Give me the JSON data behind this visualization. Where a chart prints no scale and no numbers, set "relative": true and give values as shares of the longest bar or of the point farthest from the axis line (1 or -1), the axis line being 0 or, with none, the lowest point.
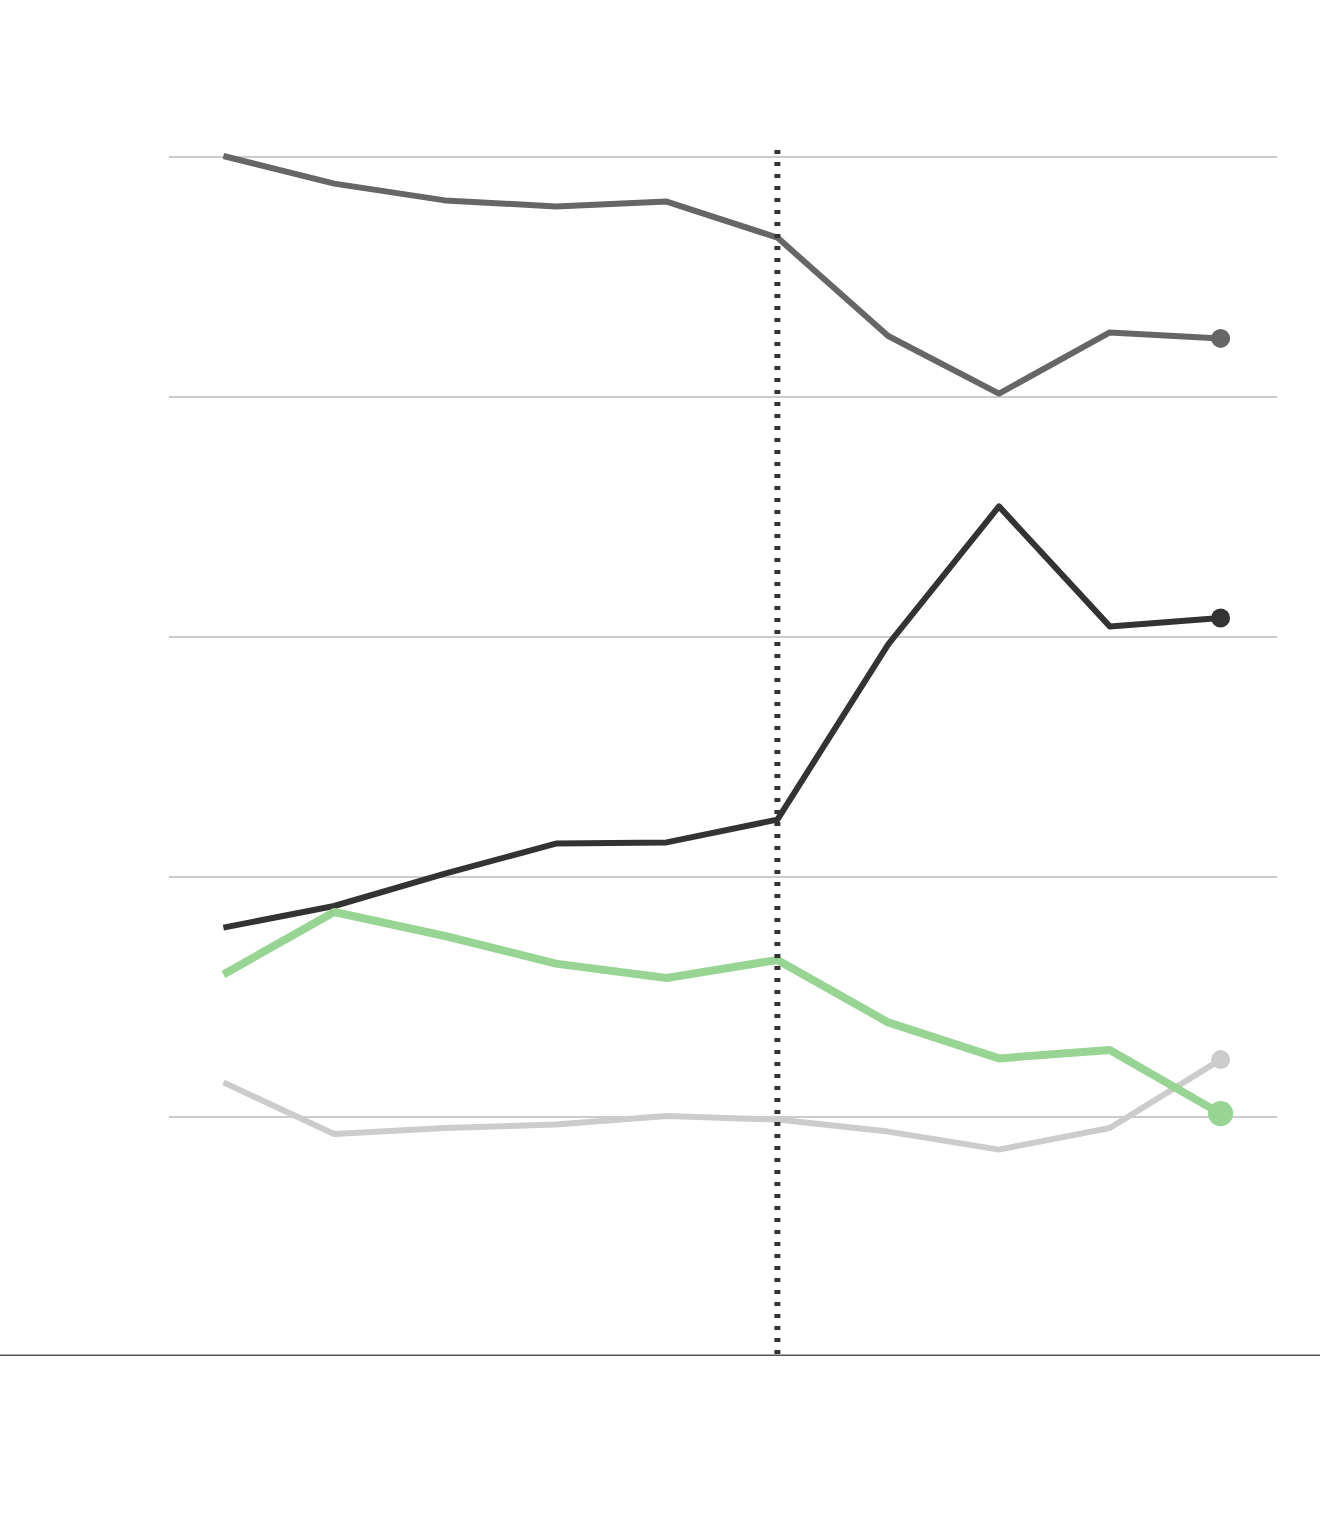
{
  "chart_data": {
    "type": "line",
    "relative": true,
    "grid": "y",
    "line_style": "solid",
    "categories": [
      null,
      null,
      null,
      null,
      null,
      null,
      null,
      null,
      null,
      null
    ],
    "series": [
      {
        "color": "#666666",
        "values": [
          1.0,
          0.977,
          0.963,
          0.958,
          0.962,
          0.932,
          0.85,
          0.802,
          0.853,
          0.848
        ]
      },
      {
        "color": "#333333",
        "values": [
          0.357,
          0.375,
          0.402,
          0.427,
          0.428,
          0.447,
          0.593,
          0.708,
          0.608,
          0.615
        ]
      },
      {
        "color": "#cccccc",
        "values": [
          0.228,
          0.185,
          0.19,
          0.193,
          0.2,
          0.197,
          0.187,
          0.172,
          0.19,
          0.247
        ]
      },
      {
        "color": "#98d594",
        "values": [
          0.318,
          0.37,
          0.35,
          0.327,
          0.315,
          0.33,
          0.278,
          0.248,
          0.255,
          0.202
        ]
      }
    ]
  }
}
